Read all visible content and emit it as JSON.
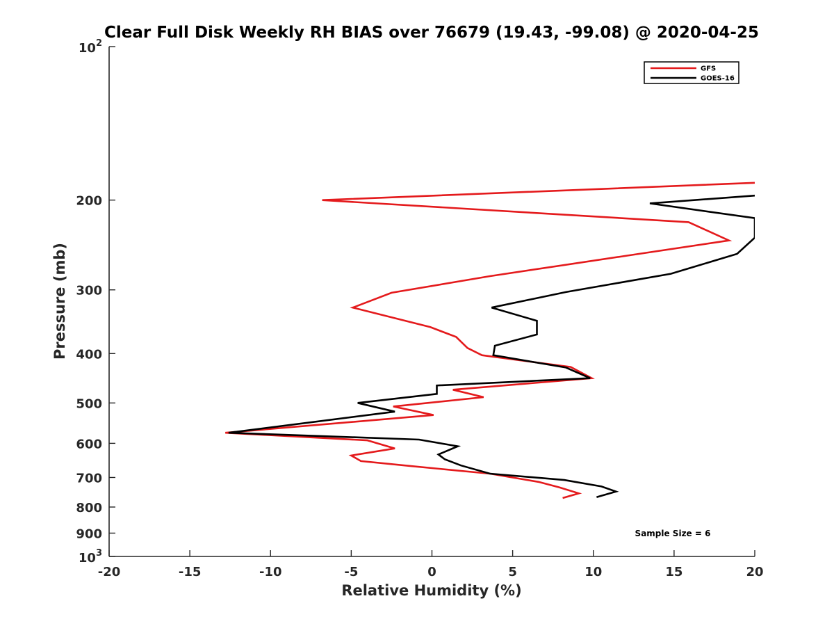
{
  "chart_data": {
    "type": "line",
    "title": "Clear Full Disk Weekly RH BIAS over 76679 (19.43, -99.08) @ 2020-04-25",
    "xlabel": "Relative Humidity (%)",
    "ylabel": "Pressure (mb)",
    "xlim": [
      -20,
      20
    ],
    "ylim": [
      100,
      1000
    ],
    "yscale": "log",
    "y_reversed": true,
    "grid": false,
    "legend_position": "top-right",
    "x_ticks": [
      "-20",
      "-15",
      "-10",
      "-5",
      "0",
      "5",
      "10",
      "15",
      "20"
    ],
    "x_tick_values": [
      -20,
      -15,
      -10,
      -5,
      0,
      5,
      10,
      15,
      20
    ],
    "y_ticks": [
      {
        "value": 100,
        "base": "10",
        "exp": "2"
      },
      {
        "value": 200,
        "label": "200"
      },
      {
        "value": 300,
        "label": "300"
      },
      {
        "value": 400,
        "label": "400"
      },
      {
        "value": 500,
        "label": "500"
      },
      {
        "value": 600,
        "label": "600"
      },
      {
        "value": 700,
        "label": "700"
      },
      {
        "value": 800,
        "label": "800"
      },
      {
        "value": 900,
        "label": "900"
      },
      {
        "value": 1000,
        "base": "10",
        "exp": "3"
      }
    ],
    "series": [
      {
        "name": "GFS",
        "color": "#e41a1c",
        "points": [
          [
            20.0,
            185
          ],
          [
            -6.8,
            200
          ],
          [
            15.9,
            221
          ],
          [
            18.4,
            240
          ],
          [
            12.1,
            257
          ],
          [
            3.6,
            282
          ],
          [
            -2.5,
            304
          ],
          [
            -4.9,
            325
          ],
          [
            -0.1,
            355
          ],
          [
            1.5,
            371
          ],
          [
            2.2,
            390
          ],
          [
            3.1,
            403
          ],
          [
            8.6,
            425
          ],
          [
            9.9,
            447
          ],
          [
            1.3,
            471
          ],
          [
            3.2,
            487
          ],
          [
            -2.4,
            508
          ],
          [
            0.1,
            528
          ],
          [
            -12.8,
            572
          ],
          [
            -4.0,
            592
          ],
          [
            -2.3,
            614
          ],
          [
            -5.0,
            634
          ],
          [
            -4.4,
            650
          ],
          [
            -1.3,
            665
          ],
          [
            3.6,
            688
          ],
          [
            6.6,
            714
          ],
          [
            7.9,
            732
          ],
          [
            9.1,
            752
          ],
          [
            8.1,
            768
          ]
        ]
      },
      {
        "name": "GOES-16",
        "color": "#000000",
        "points": [
          [
            20.0,
            196
          ],
          [
            13.5,
            203
          ],
          [
            20.0,
            217
          ],
          [
            20.0,
            237
          ],
          [
            18.9,
            255
          ],
          [
            14.8,
            279
          ],
          [
            8.3,
            303
          ],
          [
            3.7,
            325
          ],
          [
            6.5,
            345
          ],
          [
            6.5,
            367
          ],
          [
            3.9,
            386
          ],
          [
            3.8,
            403
          ],
          [
            8.3,
            426
          ],
          [
            9.8,
            447
          ],
          [
            0.3,
            462
          ],
          [
            0.3,
            480
          ],
          [
            -4.6,
            500
          ],
          [
            -2.3,
            520
          ],
          [
            -12.6,
            572
          ],
          [
            -0.8,
            590
          ],
          [
            1.6,
            608
          ],
          [
            0.4,
            631
          ],
          [
            0.8,
            645
          ],
          [
            1.8,
            663
          ],
          [
            3.6,
            688
          ],
          [
            8.2,
            708
          ],
          [
            10.5,
            729
          ],
          [
            11.4,
            746
          ],
          [
            10.2,
            765
          ]
        ]
      }
    ],
    "annotation": "Sample Size = 6"
  }
}
